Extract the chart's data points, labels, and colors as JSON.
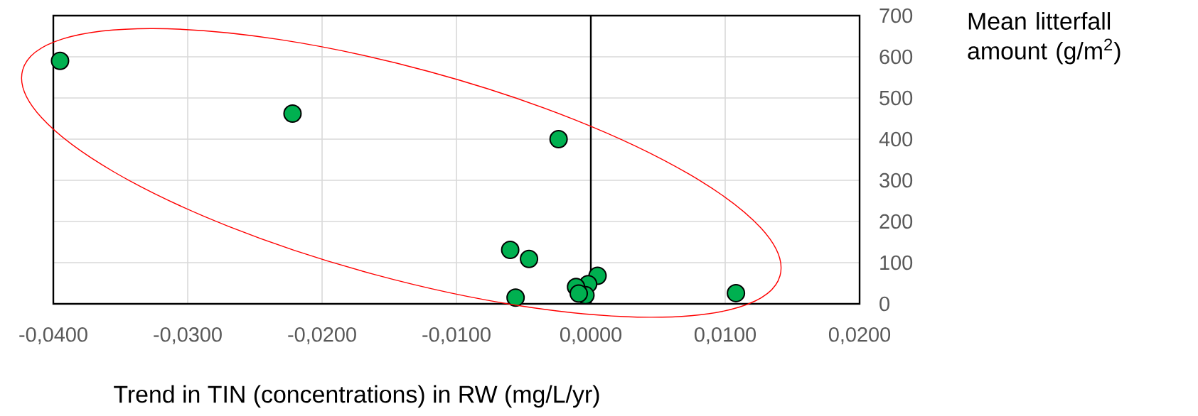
{
  "chart_data": {
    "type": "scatter",
    "xlabel": "Trend in TIN (concentrations) in RW (mg/L/yr)",
    "ylabel": "Mean litterfall amount (g/m$^{2}$)",
    "series": [
      {
        "color": "#00b050",
        "x": [
          -0.0395,
          -0.0222,
          -0.0024,
          -0.006,
          -0.0046,
          -0.0056,
          0.0005,
          -0.0002,
          -0.0011,
          -0.0004,
          -0.0009,
          0.0108
        ],
        "values": [
          590,
          462,
          400,
          131,
          109,
          15,
          68,
          48,
          41,
          21,
          25,
          26
        ]
      }
    ],
    "xlim": [
      -0.04,
      0.02
    ],
    "xticks": [
      {
        "value": -0.04,
        "label": "-0,0400"
      },
      {
        "value": -0.03,
        "label": "-0,0300"
      },
      {
        "value": -0.02,
        "label": "-0,0200"
      },
      {
        "value": -0.01,
        "label": "-0,0100"
      },
      {
        "value": 0,
        "label": "0,0000"
      },
      {
        "value": 0.01,
        "label": "0,0100"
      },
      {
        "value": 0.02,
        "label": "0,0200"
      }
    ],
    "ylim": [
      0,
      700
    ],
    "yticks": [
      0,
      100,
      200,
      300,
      400,
      500,
      600,
      700
    ],
    "grid": true,
    "marker": "circle",
    "ref_lines": [
      {
        "axis": "x",
        "value": 0,
        "color": "#000000"
      }
    ]
  }
}
